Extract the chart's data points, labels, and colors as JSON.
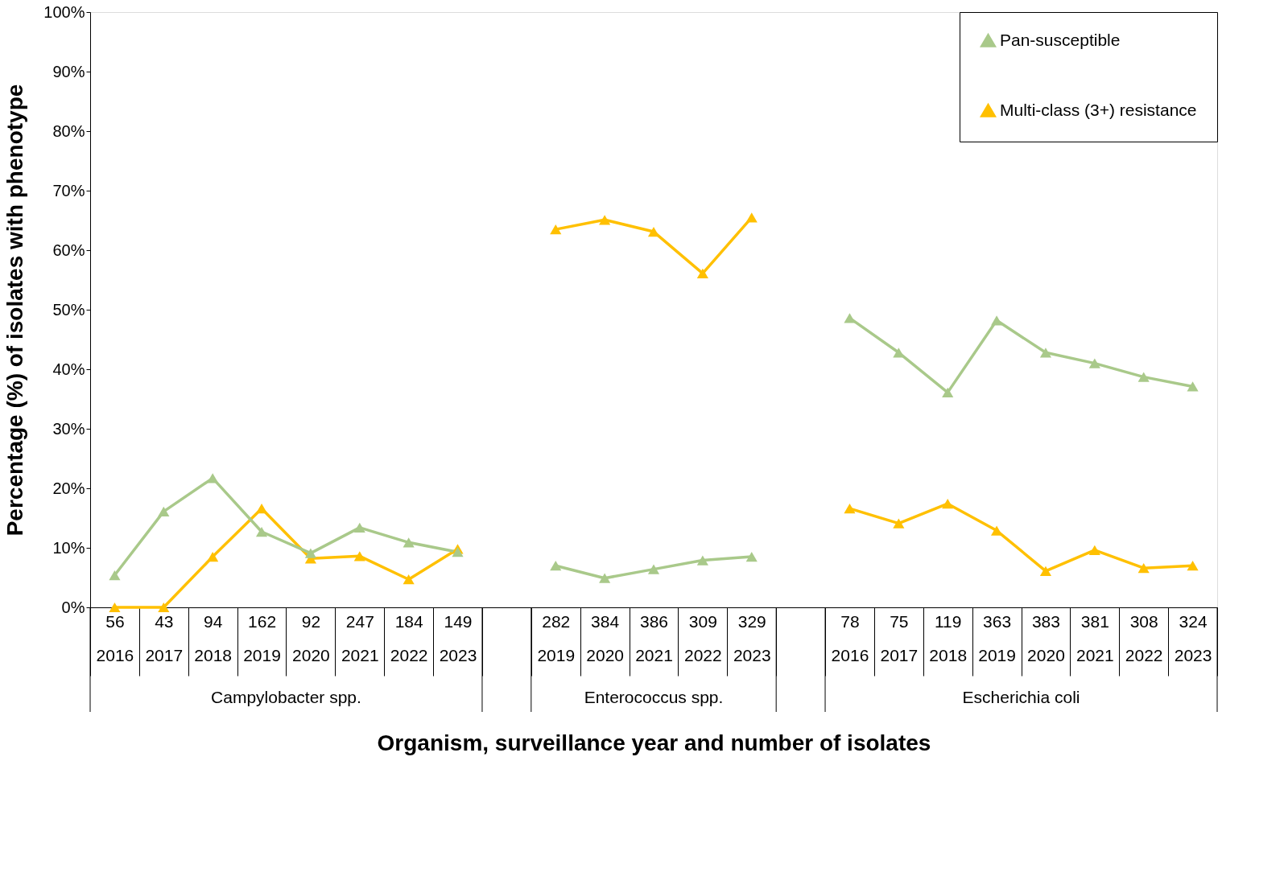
{
  "chart_data": {
    "type": "line",
    "xlabel": "Organism, surveillance year and number of isolates",
    "ylabel": "Percentage (%) of isolates with phenotype",
    "categories": [
      "56\n2016",
      "43\n2017",
      "94\n2018",
      "162\n2019",
      "92\n2020",
      "247\n2021",
      "184\n2022",
      "149\n2023",
      null,
      "282\n2019",
      "384\n2020",
      "386\n2021",
      "309\n2022",
      "329\n2023",
      null,
      "78\n2016",
      "75\n2017",
      "119\n2018",
      "363\n2019",
      "383\n2020",
      "381\n2021",
      "308\n2022",
      "324\n2023"
    ],
    "series": [
      {
        "name": "Pan-susceptible",
        "color": "#a9c98a",
        "values": [
          5.4,
          16.1,
          21.7,
          12.7,
          9.1,
          13.4,
          10.9,
          9.3,
          null,
          7.0,
          4.9,
          6.4,
          7.9,
          8.5,
          null,
          48.6,
          42.8,
          36.1,
          48.2,
          42.8,
          41.0,
          38.7,
          37.1
        ]
      },
      {
        "name": "Multi-class (3+) resistance",
        "color": "#ffc000",
        "values": [
          0,
          0,
          8.5,
          16.6,
          8.2,
          8.6,
          4.7,
          9.8,
          null,
          63.5,
          65.1,
          63.1,
          56.1,
          65.5,
          null,
          16.6,
          14.1,
          17.4,
          12.9,
          6.1,
          9.6,
          6.6,
          7.0
        ]
      }
    ],
    "ylim": [
      0,
      100
    ],
    "yticks": [
      {
        "value": 0,
        "label": "0%"
      },
      {
        "value": 10,
        "label": "10%"
      },
      {
        "value": 20,
        "label": "20%"
      },
      {
        "value": 30,
        "label": "30%"
      },
      {
        "value": 40,
        "label": "40%"
      },
      {
        "value": 50,
        "label": "50%"
      },
      {
        "value": 60,
        "label": "60%"
      },
      {
        "value": 70,
        "label": "70%"
      },
      {
        "value": 80,
        "label": "80%"
      },
      {
        "value": 90,
        "label": "90%"
      },
      {
        "value": 100,
        "label": "100%"
      }
    ],
    "annotations": [
      "Campylobacter spp.",
      "Enterococcus spp.",
      "Escherichia coli"
    ],
    "legend": "top right",
    "grid": false,
    "marker": "triangle",
    "line_style": "solid"
  }
}
